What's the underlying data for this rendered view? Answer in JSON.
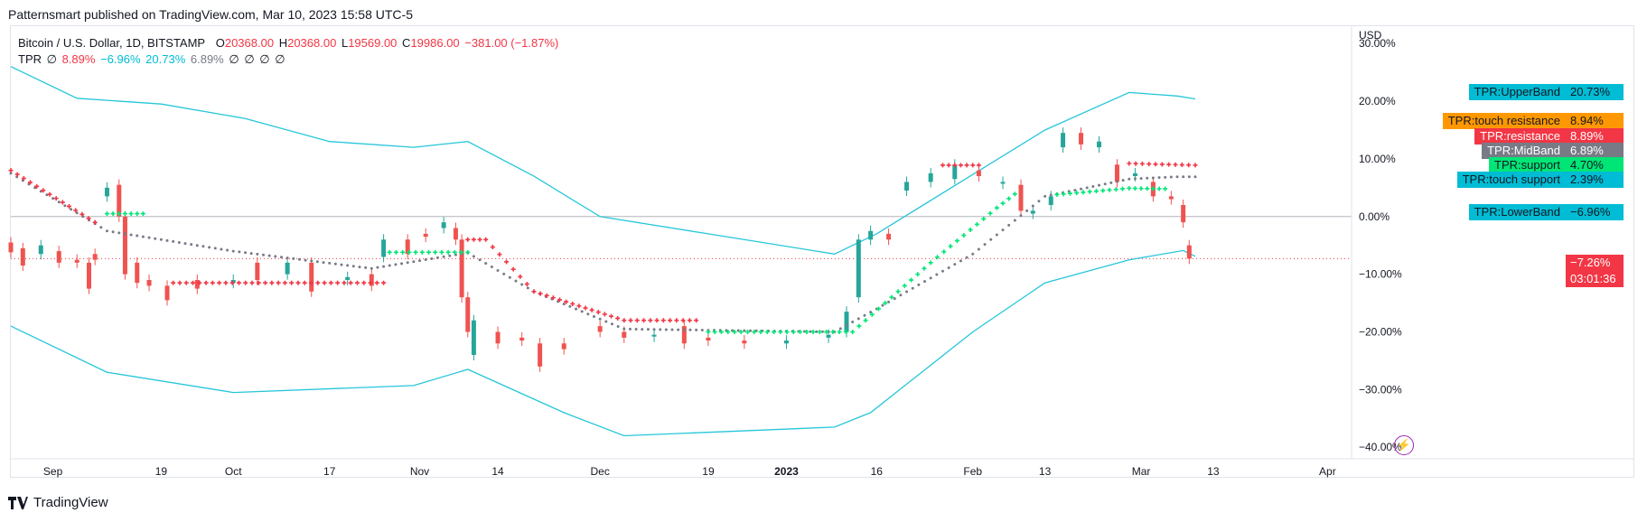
{
  "header": {
    "published": "Patternsmart published on TradingView.com, Mar 10, 2023 15:58 UTC-5"
  },
  "legend": {
    "symbol": "Bitcoin / U.S. Dollar, 1D, BITSTAMP",
    "open_label": "O",
    "open": "20368.00",
    "high_label": "H",
    "high": "20368.00",
    "low_label": "L",
    "low": "19569.00",
    "close_label": "C",
    "close": "19986.00",
    "change": "−381.00 (−1.87%)",
    "indicator": "TPR",
    "indicator_values": [
      "∅",
      "8.89%",
      "−6.96%",
      "20.73%",
      "6.89%",
      "∅",
      "∅",
      "∅",
      "∅"
    ]
  },
  "footer": {
    "brand": "TradingView"
  },
  "colors": {
    "up": "#26a69a",
    "down": "#ef5350",
    "band": "#26c6da",
    "mid": "#787b86",
    "resistance": "#f23645",
    "support": "#00e676",
    "touch": "#ff9800",
    "touch_support": "#00bcd4"
  },
  "price_tags": [
    {
      "name": "TPR:UpperBand",
      "value": "20.73%",
      "bg": "#00bcd4",
      "fg": "#131722"
    },
    {
      "name": "TPR:touch resistance",
      "value": "8.94%",
      "bg": "#ff9800",
      "fg": "#131722"
    },
    {
      "name": "TPR:resistance",
      "value": "8.89%",
      "bg": "#f23645",
      "fg": "#ffffff"
    },
    {
      "name": "TPR:MidBand",
      "value": "6.89%",
      "bg": "#787b86",
      "fg": "#ffffff"
    },
    {
      "name": "TPR:support",
      "value": "4.70%",
      "bg": "#00e676",
      "fg": "#131722"
    },
    {
      "name": "TPR:touch support",
      "value": "2.39%",
      "bg": "#00bcd4",
      "fg": "#131722"
    },
    {
      "name": "TPR:LowerBand",
      "value": "−6.96%",
      "bg": "#00bcd4",
      "fg": "#131722"
    }
  ],
  "current": {
    "value": "−7.26%",
    "countdown": "03:01:36"
  },
  "chart_data": {
    "type": "line",
    "axis_unit": "USD",
    "y_ticks": [
      "30.00%",
      "20.00%",
      "10.00%",
      "0.00%",
      "−10.00%",
      "−20.00%",
      "−30.00%",
      "−40.00%"
    ],
    "x_ticks": [
      "Sep",
      "19",
      "Oct",
      "17",
      "Nov",
      "14",
      "Dec",
      "19",
      "2023",
      "16",
      "Feb",
      "13",
      "Mar",
      "13",
      "Apr"
    ],
    "ylim": [
      -42,
      33
    ],
    "x_dates_range": [
      "2022-08-25",
      "2023-04-05"
    ],
    "series": [
      {
        "name": "TPR:UpperBand",
        "points": [
          [
            "2022-08-25",
            26
          ],
          [
            "2022-09-05",
            20.5
          ],
          [
            "2022-09-19",
            19.5
          ],
          [
            "2022-10-03",
            17
          ],
          [
            "2022-10-17",
            13
          ],
          [
            "2022-10-31",
            12
          ],
          [
            "2022-11-09",
            13
          ],
          [
            "2022-11-20",
            7
          ],
          [
            "2022-12-01",
            0
          ],
          [
            "2022-12-19",
            -3
          ],
          [
            "2023-01-09",
            -6.5
          ],
          [
            "2023-01-16",
            -3
          ],
          [
            "2023-01-30",
            6
          ],
          [
            "2023-02-13",
            15
          ],
          [
            "2023-02-27",
            21.5
          ],
          [
            "2023-03-07",
            20.9
          ],
          [
            "2023-03-10",
            20.4
          ]
        ]
      },
      {
        "name": "TPR:LowerBand",
        "points": [
          [
            "2022-08-25",
            -19
          ],
          [
            "2022-09-10",
            -27
          ],
          [
            "2022-10-01",
            -30.5
          ],
          [
            "2022-10-31",
            -29.3
          ],
          [
            "2022-11-09",
            -26.5
          ],
          [
            "2022-11-25",
            -34
          ],
          [
            "2022-12-05",
            -38
          ],
          [
            "2023-01-09",
            -36.5
          ],
          [
            "2023-01-15",
            -34
          ],
          [
            "2023-02-01",
            -20
          ],
          [
            "2023-02-13",
            -11.5
          ],
          [
            "2023-02-27",
            -7.5
          ],
          [
            "2023-03-08",
            -5.9
          ],
          [
            "2023-03-10",
            -6.9
          ]
        ]
      },
      {
        "name": "TPR:MidBand",
        "points": [
          [
            "2022-08-25",
            7.5
          ],
          [
            "2022-09-10",
            -2.5
          ],
          [
            "2022-10-01",
            -6
          ],
          [
            "2022-10-24",
            -9
          ],
          [
            "2022-11-09",
            -6.3
          ],
          [
            "2022-11-20",
            -13
          ],
          [
            "2022-12-05",
            -19.5
          ],
          [
            "2023-01-09",
            -20
          ],
          [
            "2023-01-16",
            -16
          ],
          [
            "2023-02-01",
            -6.5
          ],
          [
            "2023-02-13",
            3.5
          ],
          [
            "2023-02-27",
            6.5
          ],
          [
            "2023-03-07",
            6.9
          ],
          [
            "2023-03-10",
            6.9
          ]
        ]
      },
      {
        "name": "TPR:resistance",
        "points": [
          [
            "2022-08-25",
            8
          ],
          [
            "2022-09-08",
            -1
          ],
          [
            "2022-09-10",
            null
          ],
          [
            "2022-09-21",
            -11.5
          ],
          [
            "2022-10-26",
            -11.5
          ],
          [
            "2022-10-27",
            null
          ],
          [
            "2022-11-09",
            -4
          ],
          [
            "2022-11-12",
            -4
          ],
          [
            "2022-11-20",
            -13
          ],
          [
            "2022-12-05",
            -18
          ],
          [
            "2022-12-17",
            -18
          ],
          [
            "2022-12-18",
            null
          ],
          [
            "2023-01-27",
            8.9
          ],
          [
            "2023-02-02",
            8.9
          ],
          [
            "2023-02-03",
            null
          ],
          [
            "2023-02-27",
            9.2
          ],
          [
            "2023-03-10",
            8.9
          ]
        ]
      },
      {
        "name": "TPR:support",
        "points": [
          [
            "2022-09-10",
            0.5
          ],
          [
            "2022-09-16",
            0.5
          ],
          [
            "2022-09-17",
            null
          ],
          [
            "2022-10-27",
            -6.2
          ],
          [
            "2022-11-09",
            -6.2
          ],
          [
            "2022-11-10",
            null
          ],
          [
            "2022-12-19",
            -20
          ],
          [
            "2023-01-12",
            -20
          ],
          [
            "2023-01-25",
            -8
          ],
          [
            "2023-02-05",
            1.5
          ],
          [
            "2023-02-08",
            3.9
          ],
          [
            "2023-02-13",
            null
          ],
          [
            "2023-02-15",
            3.8
          ],
          [
            "2023-02-27",
            4.9
          ],
          [
            "2023-03-05",
            4.8
          ]
        ]
      }
    ],
    "candles": [
      [
        "2022-08-25",
        -4.5,
        -6.2
      ],
      [
        "2022-08-27",
        -5.5,
        -8.5
      ],
      [
        "2022-08-30",
        -6.5,
        -5
      ],
      [
        "2022-09-02",
        -6,
        -8
      ],
      [
        "2022-09-05",
        -7.5,
        -8
      ],
      [
        "2022-09-07",
        -8,
        -12.5
      ],
      [
        "2022-09-08",
        -6.5,
        -7.5
      ],
      [
        "2022-09-10",
        3.5,
        5
      ],
      [
        "2022-09-12",
        5.5,
        0
      ],
      [
        "2022-09-13",
        0,
        -10
      ],
      [
        "2022-09-15",
        -8,
        -11.5
      ],
      [
        "2022-09-17",
        -11,
        -12
      ],
      [
        "2022-09-20",
        -12,
        -14.5
      ],
      [
        "2022-09-25",
        -11,
        -12.5
      ],
      [
        "2022-10-01",
        -11.5,
        -11
      ],
      [
        "2022-10-05",
        -8,
        -11
      ],
      [
        "2022-10-10",
        -10,
        -8
      ],
      [
        "2022-10-14",
        -8,
        -13
      ],
      [
        "2022-10-20",
        -11,
        -10.5
      ],
      [
        "2022-10-24",
        -10,
        -12
      ],
      [
        "2022-10-26",
        -7,
        -4
      ],
      [
        "2022-10-30",
        -4,
        -6.5
      ],
      [
        "2022-11-02",
        -3,
        -3.5
      ],
      [
        "2022-11-05",
        -2,
        -1
      ],
      [
        "2022-11-07",
        -2,
        -4
      ],
      [
        "2022-11-08",
        -4,
        -14
      ],
      [
        "2022-11-09",
        -14,
        -20
      ],
      [
        "2022-11-10",
        -24,
        -18
      ],
      [
        "2022-11-14",
        -20,
        -22
      ],
      [
        "2022-11-18",
        -21,
        -21.5
      ],
      [
        "2022-11-21",
        -22,
        -26
      ],
      [
        "2022-11-25",
        -22,
        -23
      ],
      [
        "2022-12-01",
        -19,
        -20
      ],
      [
        "2022-12-05",
        -20,
        -21
      ],
      [
        "2022-12-10",
        -20.5,
        -20.5
      ],
      [
        "2022-12-15",
        -19,
        -22
      ],
      [
        "2022-12-19",
        -21,
        -21.5
      ],
      [
        "2022-12-25",
        -21.5,
        -22
      ],
      [
        "2023-01-01",
        -22,
        -21.5
      ],
      [
        "2023-01-08",
        -21,
        -20.5
      ],
      [
        "2023-01-11",
        -20,
        -16.5
      ],
      [
        "2023-01-13",
        -14,
        -4
      ],
      [
        "2023-01-15",
        -4,
        -2.5
      ],
      [
        "2023-01-18",
        -3,
        -4
      ],
      [
        "2023-01-21",
        4.5,
        6
      ],
      [
        "2023-01-25",
        6,
        7.5
      ],
      [
        "2023-01-29",
        6.5,
        9
      ],
      [
        "2023-02-02",
        8,
        7
      ],
      [
        "2023-02-06",
        6,
        6
      ],
      [
        "2023-02-09",
        5.5,
        1
      ],
      [
        "2023-02-11",
        0.5,
        1
      ],
      [
        "2023-02-14",
        2,
        3.5
      ],
      [
        "2023-02-16",
        12,
        14.5
      ],
      [
        "2023-02-19",
        14.5,
        12.5
      ],
      [
        "2023-02-22",
        12,
        13
      ],
      [
        "2023-02-25",
        9,
        6
      ],
      [
        "2023-02-28",
        7,
        7.5
      ],
      [
        "2023-03-03",
        6,
        3.5
      ],
      [
        "2023-03-06",
        3.5,
        3
      ],
      [
        "2023-03-08",
        2,
        -1
      ],
      [
        "2023-03-09",
        -5,
        -7.3
      ]
    ]
  }
}
